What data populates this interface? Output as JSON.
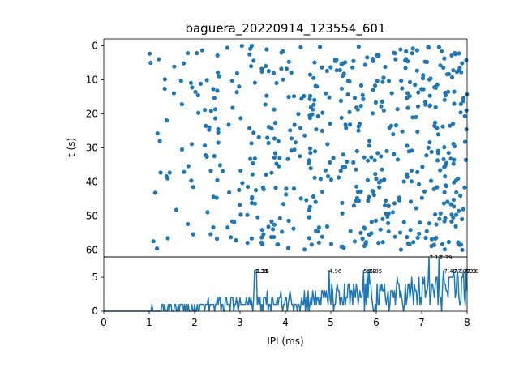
{
  "chart_data": [
    {
      "type": "scatter",
      "title": "baguera_20220914_123554_601",
      "xlabel": "",
      "ylabel": "t (s)",
      "xlim": [
        0,
        8
      ],
      "ylim": [
        62,
        -2
      ],
      "y_inverted": true,
      "yticks": [
        "0",
        "10",
        "20",
        "30",
        "40",
        "50",
        "60"
      ],
      "marker_color": "#1f77b4",
      "x_range_of_points": [
        1.0,
        8.0
      ],
      "t_range_of_points": [
        0,
        60
      ],
      "approx_point_count": 560
    },
    {
      "type": "line",
      "xlabel": "IPI (ms)",
      "ylabel": "",
      "xlim": [
        0,
        8
      ],
      "ylim": [
        0,
        8
      ],
      "xticks": [
        "0",
        "1",
        "2",
        "3",
        "4",
        "5",
        "6",
        "7",
        "8"
      ],
      "yticks": [
        "0",
        "5"
      ],
      "line_color": "#1f77b4",
      "peaks": [
        {
          "x": 3.33,
          "y": 6,
          "label": "3.33"
        },
        {
          "x": 3.35,
          "y": 6,
          "label": "3.35"
        },
        {
          "x": 3.36,
          "y": 6,
          "label": "3.36"
        },
        {
          "x": 4.96,
          "y": 6,
          "label": "4.96"
        },
        {
          "x": 5.72,
          "y": 6,
          "label": "5.72"
        },
        {
          "x": 5.8,
          "y": 6,
          "label": "5.8"
        },
        {
          "x": 5.85,
          "y": 6,
          "label": "5.85"
        },
        {
          "x": 7.17,
          "y": 8,
          "label": "7.17"
        },
        {
          "x": 7.39,
          "y": 8,
          "label": "7.39"
        },
        {
          "x": 7.49,
          "y": 6,
          "label": "7.49"
        },
        {
          "x": 7.7,
          "y": 6,
          "label": "7.7"
        },
        {
          "x": 7.79,
          "y": 6,
          "label": "7.79"
        },
        {
          "x": 7.93,
          "y": 6,
          "label": "7.93"
        },
        {
          "x": 7.98,
          "y": 6,
          "label": "7.98"
        }
      ]
    }
  ]
}
